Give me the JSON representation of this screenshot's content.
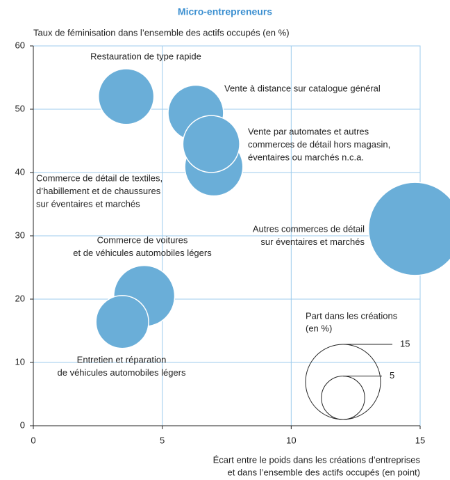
{
  "chart_data": {
    "type": "bubble",
    "title": "Micro-entrepreneurs",
    "y_label": "Taux de féminisation dans l’ensemble des actifs occupés (en %)",
    "x_label": [
      "Écart entre le poids dans les créations d’entreprises",
      "et dans l’ensemble des actifs occupés (en point)"
    ],
    "color": "#6aaed8",
    "xlim": [
      0,
      15
    ],
    "xticks": [
      0,
      5,
      10,
      15
    ],
    "ylim": [
      0,
      60
    ],
    "yticks": [
      0,
      10,
      20,
      30,
      40,
      50,
      60
    ],
    "grid": true,
    "points": [
      {
        "label": [
          "Restauration de type rapide"
        ],
        "x": 3.6,
        "y": 52.0,
        "size": 8.2
      },
      {
        "label": [
          "Vente à distance sur catalogue général"
        ],
        "x": 6.3,
        "y": 49.4,
        "size": 8.2
      },
      {
        "label": [
          "Commerce de détail de textiles,",
          "d’habillement et de chaussures",
          "sur éventaires et marchés"
        ],
        "x": 7.0,
        "y": 40.9,
        "size": 9.0
      },
      {
        "label": [
          "Vente par automates et autres",
          "commerces de détail hors magasin,",
          "éventaires ou marchés n.c.a."
        ],
        "x": 6.9,
        "y": 44.5,
        "size": 8.6
      },
      {
        "label": [
          "Autres commerces de détail",
          "sur éventaires et marchés"
        ],
        "x": 14.8,
        "y": 31.1,
        "size": 23.0
      },
      {
        "label": [
          "Commerce de voitures",
          "et de véhicules automobiles légers"
        ],
        "x": 4.3,
        "y": 20.5,
        "size": 9.9
      },
      {
        "label": [
          "Entretien et réparation",
          "de véhicules automobiles légers"
        ],
        "x": 3.45,
        "y": 16.4,
        "size": 7.4
      }
    ],
    "size_legend": {
      "title": [
        "Part dans les créations",
        "(en %)"
      ],
      "values": [
        15,
        5
      ]
    }
  }
}
